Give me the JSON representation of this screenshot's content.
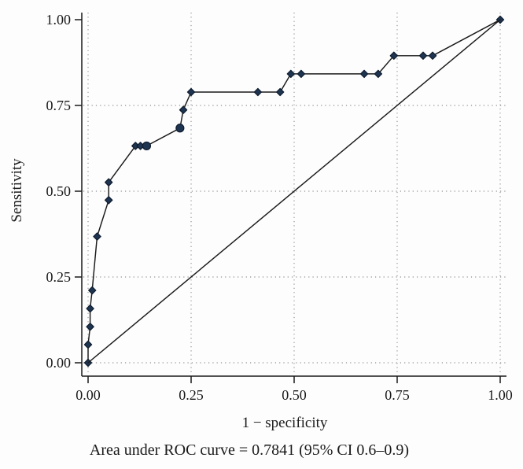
{
  "page": {
    "background_color": "#fdfdfd",
    "kind": "ROC curve statistical plot"
  },
  "chart_data": {
    "type": "line",
    "title": "",
    "xlabel": "1 − specificity",
    "ylabel": "Sensitivity",
    "caption": "Area under ROC curve = 0.7841 (95% CI 0.6–0.9)",
    "auc": 0.7841,
    "ci_95_low": 0.6,
    "ci_95_high": 0.9,
    "xlim": [
      0,
      1
    ],
    "ylim": [
      0,
      1
    ],
    "x_ticks": {
      "values": [
        0,
        0.25,
        0.5,
        0.75,
        1
      ],
      "labels": [
        "0.00",
        "0.25",
        "0.50",
        "0.75",
        "1.00"
      ]
    },
    "y_ticks": {
      "values": [
        0,
        0.25,
        0.5,
        0.75,
        1
      ],
      "labels": [
        "0.00",
        "0.25",
        "0.50",
        "0.75",
        "1.00"
      ]
    },
    "grid": {
      "style": "dotted",
      "vertical_line_values": [
        0,
        0.25,
        0.5,
        0.75,
        1
      ],
      "horizontal_line_values": [
        0,
        0.25,
        0.5,
        0.75
      ]
    },
    "legend": "none",
    "series": [
      {
        "name": "ROC curve",
        "marker": "diamond",
        "circle_marker_indices": [
          10,
          11
        ],
        "points": [
          [
            0,
            0
          ],
          [
            0,
            0.053
          ],
          [
            0.005,
            0.105
          ],
          [
            0.005,
            0.158
          ],
          [
            0.01,
            0.211
          ],
          [
            0.022,
            0.368
          ],
          [
            0.05,
            0.474
          ],
          [
            0.05,
            0.526
          ],
          [
            0.115,
            0.632
          ],
          [
            0.127,
            0.632
          ],
          [
            0.142,
            0.632
          ],
          [
            0.223,
            0.684
          ],
          [
            0.231,
            0.737
          ],
          [
            0.25,
            0.789
          ],
          [
            0.412,
            0.789
          ],
          [
            0.466,
            0.789
          ],
          [
            0.492,
            0.842
          ],
          [
            0.517,
            0.842
          ],
          [
            0.67,
            0.842
          ],
          [
            0.704,
            0.842
          ],
          [
            0.742,
            0.895
          ],
          [
            0.813,
            0.895
          ],
          [
            0.836,
            0.895
          ],
          [
            1,
            1
          ]
        ]
      },
      {
        "name": "Reference line (chance diagonal)",
        "marker": "none",
        "circle_marker_indices": [],
        "points": [
          [
            0,
            0
          ],
          [
            1,
            1
          ]
        ]
      }
    ],
    "colors": {
      "line": "#1a1a1a",
      "axis": "#1a1a1a",
      "grid": "#8f8f8f",
      "text": "#1a1a1a",
      "marker_fill": "#1e3450",
      "marker_stroke": "#0e1c2e"
    }
  }
}
